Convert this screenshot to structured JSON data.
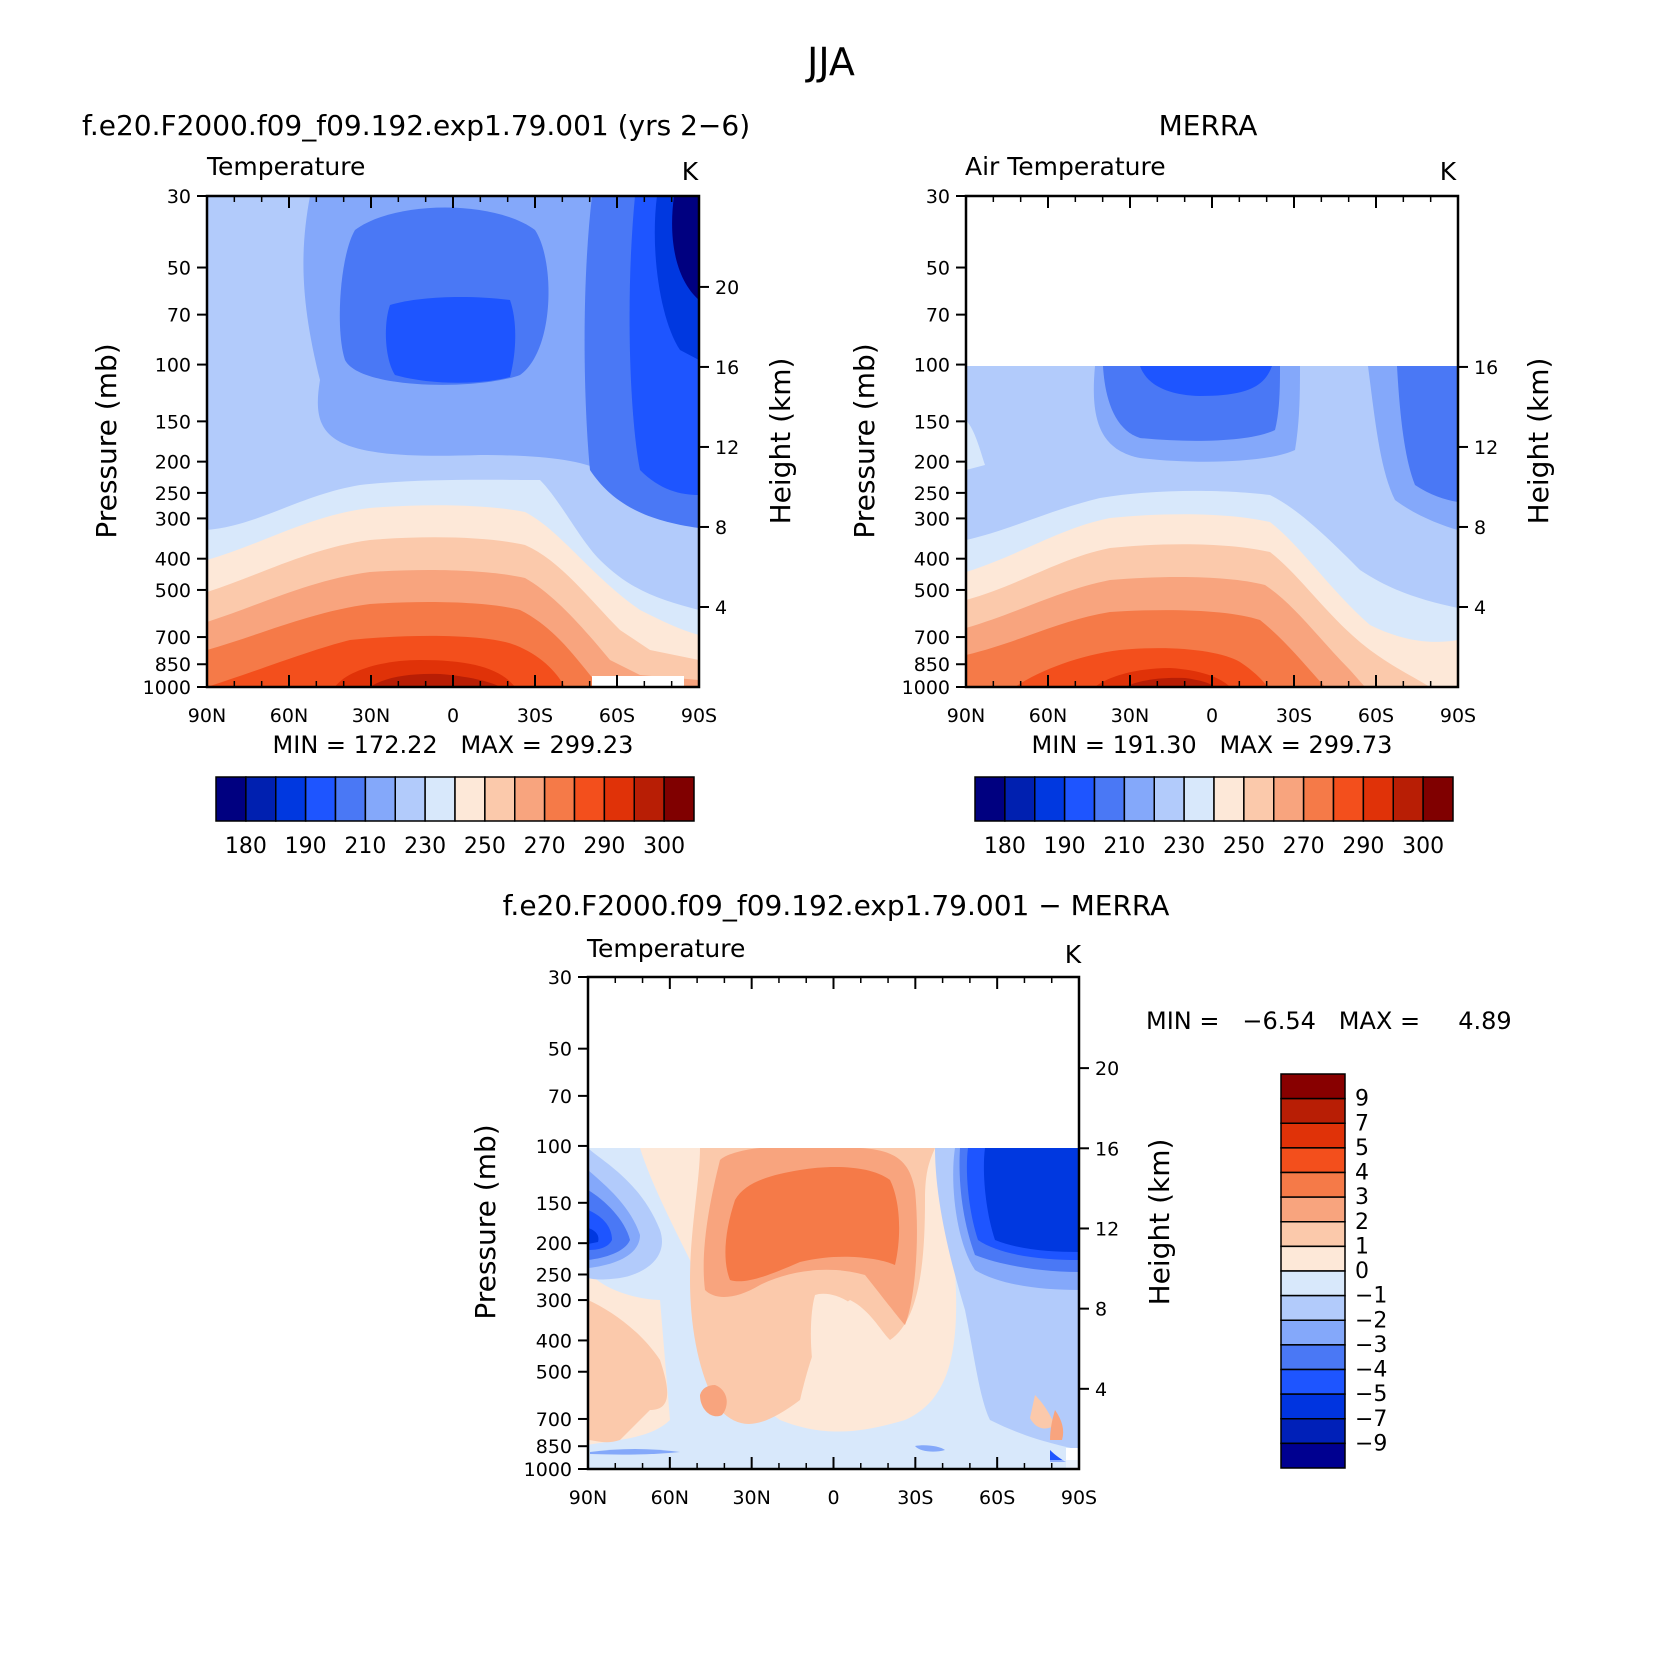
{
  "figure_title": "JJA",
  "panel_titles": {
    "model": "f.e20.F2000.f09_f09.192.exp1.79.001 (yrs 2−6)",
    "obs": "MERRA",
    "diff": "f.e20.F2000.f09_f09.192.exp1.79.001 − MERRA"
  },
  "chart_data": [
    {
      "id": "model",
      "type": "heatmap",
      "subtitle": "Temperature",
      "units": "K",
      "xlabel": "",
      "ylabel": "Pressure (mb)",
      "y2label": "Height (km)",
      "x_ticks": [
        "90N",
        "60N",
        "30N",
        "0",
        "30S",
        "60S",
        "90S"
      ],
      "y_ticks": [
        30,
        50,
        70,
        100,
        150,
        200,
        250,
        300,
        400,
        500,
        700,
        850,
        1000
      ],
      "y2_ticks": [
        4,
        8,
        12,
        16,
        20
      ],
      "ylim": [
        1000,
        30
      ],
      "stats": "MIN = 172.22   MAX = 299.23",
      "colorbar_labels": [
        "180",
        "190",
        "210",
        "230",
        "250",
        "270",
        "290",
        "300"
      ],
      "approx_values": {
        "lat": [
          90,
          60,
          30,
          0,
          -30,
          -60,
          -90
        ],
        "pressure": [
          30,
          70,
          100,
          200,
          300,
          500,
          700,
          1000
        ],
        "temperature": [
          [
            222,
            215,
            205,
            205,
            212,
            200,
            180
          ],
          [
            222,
            212,
            200,
            200,
            210,
            198,
            182
          ],
          [
            222,
            212,
            197,
            196,
            208,
            198,
            188
          ],
          [
            220,
            220,
            215,
            216,
            210,
            200,
            196
          ],
          [
            230,
            240,
            242,
            242,
            236,
            215,
            205
          ],
          [
            252,
            260,
            266,
            266,
            260,
            238,
            225
          ],
          [
            265,
            275,
            283,
            283,
            275,
            250,
            240
          ],
          [
            282,
            290,
            298,
            297,
            288,
            262,
            250
          ]
        ]
      }
    },
    {
      "id": "obs",
      "type": "heatmap",
      "subtitle": "Air Temperature",
      "units": "K",
      "xlabel": "",
      "ylabel": "Pressure (mb)",
      "y2label": "Height (km)",
      "x_ticks": [
        "90N",
        "60N",
        "30N",
        "0",
        "30S",
        "60S",
        "90S"
      ],
      "y_ticks": [
        30,
        50,
        70,
        100,
        150,
        200,
        250,
        300,
        400,
        500,
        700,
        850,
        1000
      ],
      "y2_ticks": [
        4,
        8,
        12,
        16
      ],
      "ylim": [
        1000,
        30
      ],
      "data_top_pressure": 100,
      "stats": "MIN = 191.30   MAX = 299.73",
      "colorbar_labels": [
        "180",
        "190",
        "210",
        "230",
        "250",
        "270",
        "290",
        "300"
      ],
      "approx_values": {
        "lat": [
          90,
          60,
          30,
          0,
          -30,
          -60,
          -90
        ],
        "pressure": [
          100,
          200,
          300,
          500,
          700,
          1000
        ],
        "temperature": [
          [
            226,
            222,
            205,
            200,
            216,
            224,
            208
          ],
          [
            224,
            222,
            214,
            214,
            218,
            212,
            205
          ],
          [
            232,
            240,
            242,
            242,
            236,
            218,
            208
          ],
          [
            252,
            260,
            266,
            266,
            260,
            240,
            232
          ],
          [
            266,
            276,
            283,
            283,
            276,
            255,
            245
          ],
          [
            283,
            291,
            299,
            298,
            290,
            270,
            255
          ]
        ]
      }
    },
    {
      "id": "diff",
      "type": "heatmap",
      "subtitle": "Temperature",
      "units": "K",
      "xlabel": "",
      "ylabel": "Pressure (mb)",
      "y2label": "Height (km)",
      "x_ticks": [
        "90N",
        "60N",
        "30N",
        "0",
        "30S",
        "60S",
        "90S"
      ],
      "y_ticks": [
        30,
        50,
        70,
        100,
        150,
        200,
        250,
        300,
        400,
        500,
        700,
        850,
        1000
      ],
      "y2_ticks": [
        4,
        8,
        12,
        16,
        20
      ],
      "ylim": [
        1000,
        30
      ],
      "data_top_pressure": 100,
      "stats": "MIN =   −6.54   MAX =     4.89",
      "colorbar_labels": [
        "9",
        "7",
        "5",
        "4",
        "3",
        "2",
        "1",
        "0",
        "−1",
        "−2",
        "−3",
        "−4",
        "−5",
        "−7",
        "−9"
      ],
      "approx_values": {
        "lat": [
          90,
          60,
          30,
          0,
          -30,
          -60,
          -90
        ],
        "pressure": [
          100,
          150,
          200,
          300,
          500,
          700,
          1000
        ],
        "difference": [
          [
            -1,
            0,
            1,
            1,
            0.5,
            -2,
            -5
          ],
          [
            -3,
            -0.5,
            3,
            4,
            3,
            -3,
            -5
          ],
          [
            -5,
            -1,
            3,
            4,
            2,
            -3,
            -4
          ],
          [
            -0.5,
            0.5,
            3,
            2,
            2,
            -1,
            -2
          ],
          [
            1.5,
            1,
            1,
            0.5,
            1,
            -1,
            -1.5
          ],
          [
            1,
            1,
            0.5,
            0.5,
            0,
            -0.5,
            -1
          ],
          [
            -0.5,
            0,
            0,
            0,
            -0.5,
            -0.5,
            -1
          ]
        ]
      }
    }
  ],
  "colors": {
    "abs_scale": [
      "#000080",
      "#0020b0",
      "#0038e0",
      "#1e55ff",
      "#4a78f5",
      "#84a8fa",
      "#b2cbfb",
      "#d8e8fb",
      "#fde8d8",
      "#fbc9ab",
      "#f8a47e",
      "#f57a48",
      "#f34f1c",
      "#e03208",
      "#b81e05",
      "#800000"
    ],
    "diff_scale": [
      "#000090",
      "#0020b8",
      "#0034e0",
      "#1e55ff",
      "#4a78f5",
      "#84a8fa",
      "#b2cbfb",
      "#d8e8fb",
      "#fde8d8",
      "#fbc9ab",
      "#f8a47e",
      "#f57a48",
      "#f34f1c",
      "#e03208",
      "#b81e05",
      "#880000"
    ]
  }
}
